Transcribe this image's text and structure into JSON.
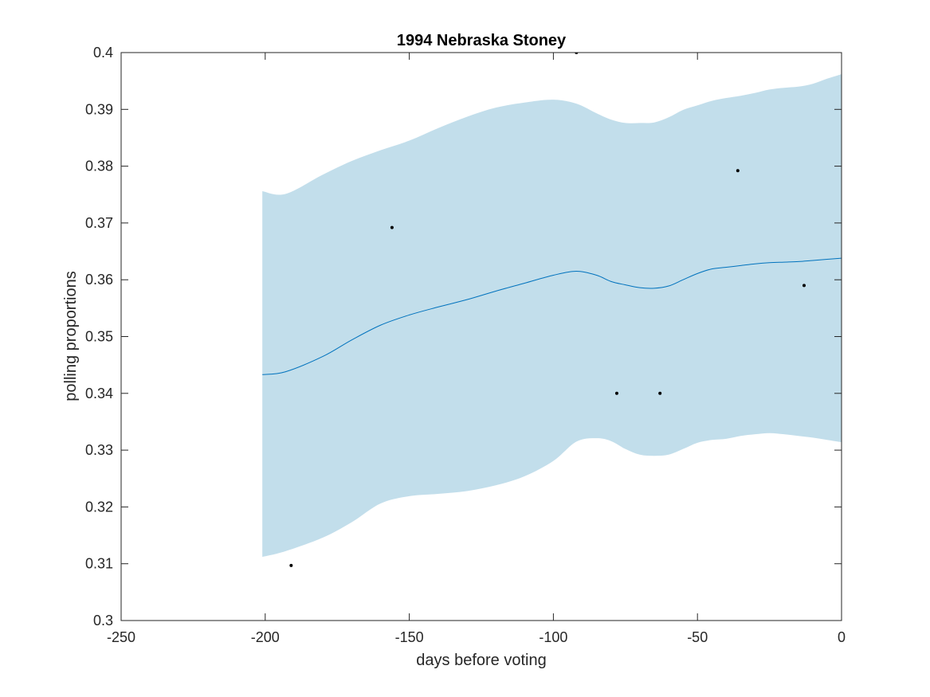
{
  "chart_data": {
    "type": "line",
    "title": "1994 Nebraska Stoney",
    "xlabel": "days before voting",
    "ylabel": "polling proportions",
    "xlim": [
      -250,
      0
    ],
    "ylim": [
      0.3,
      0.4
    ],
    "x_ticks": [
      -250,
      -200,
      -150,
      -100,
      -50,
      0
    ],
    "x_tick_labels": [
      "-250",
      "-200",
      "-150",
      "-100",
      "-50",
      "0"
    ],
    "y_ticks": [
      0.3,
      0.31,
      0.32,
      0.33,
      0.34,
      0.35,
      0.36,
      0.37,
      0.38,
      0.39,
      0.4
    ],
    "y_tick_labels": [
      "0.3",
      "0.31",
      "0.32",
      "0.33",
      "0.34",
      "0.35",
      "0.36",
      "0.37",
      "0.38",
      "0.39",
      "0.4"
    ],
    "grid": false,
    "legend": "none",
    "colors": {
      "band": "#c2deeb",
      "mean_line": "#0072bd",
      "points": "#000000",
      "axes": "#262626"
    },
    "series": [
      {
        "type": "area",
        "x": [
          -201,
          -193,
          -180,
          -170,
          -160,
          -150,
          -140,
          -130,
          -120,
          -110,
          -100,
          -92,
          -85,
          -80,
          -75,
          -70,
          -65,
          -60,
          -55,
          -50,
          -45,
          -40,
          -35,
          -30,
          -25,
          -20,
          -15,
          -10,
          -5,
          0
        ],
        "upper": [
          0.3756,
          0.3751,
          0.3785,
          0.3809,
          0.3828,
          0.3845,
          0.3867,
          0.3887,
          0.3903,
          0.3912,
          0.3917,
          0.391,
          0.3893,
          0.3882,
          0.3876,
          0.3876,
          0.3877,
          0.3886,
          0.3899,
          0.3907,
          0.3915,
          0.392,
          0.3924,
          0.3929,
          0.3935,
          0.3938,
          0.394,
          0.3945,
          0.3954,
          0.3962
        ],
        "lower": [
          0.3112,
          0.3122,
          0.3146,
          0.3173,
          0.3206,
          0.3219,
          0.3223,
          0.3228,
          0.3238,
          0.3254,
          0.3281,
          0.3315,
          0.3321,
          0.3316,
          0.3302,
          0.3292,
          0.329,
          0.3292,
          0.3302,
          0.3313,
          0.3318,
          0.332,
          0.3325,
          0.3328,
          0.333,
          0.3328,
          0.3325,
          0.3322,
          0.3318,
          0.3314
        ]
      },
      {
        "type": "line",
        "x": [
          -201,
          -193,
          -180,
          -170,
          -160,
          -150,
          -140,
          -130,
          -120,
          -110,
          -100,
          -92,
          -85,
          -80,
          -75,
          -70,
          -65,
          -60,
          -55,
          -50,
          -45,
          -40,
          -35,
          -30,
          -25,
          -20,
          -15,
          -10,
          -5,
          0
        ],
        "values": [
          0.3433,
          0.3438,
          0.3465,
          0.3494,
          0.352,
          0.3538,
          0.3552,
          0.3565,
          0.358,
          0.3594,
          0.3608,
          0.3615,
          0.3608,
          0.3597,
          0.3591,
          0.3586,
          0.3585,
          0.3589,
          0.36,
          0.3611,
          0.3619,
          0.3622,
          0.3625,
          0.3628,
          0.363,
          0.3631,
          0.3632,
          0.3634,
          0.3636,
          0.3638
        ]
      },
      {
        "type": "scatter",
        "x": [
          -191,
          -156,
          -92,
          -78,
          -63,
          -36,
          -13
        ],
        "values": [
          0.3097,
          0.3692,
          0.4,
          0.34,
          0.34,
          0.3792,
          0.359
        ]
      }
    ]
  }
}
